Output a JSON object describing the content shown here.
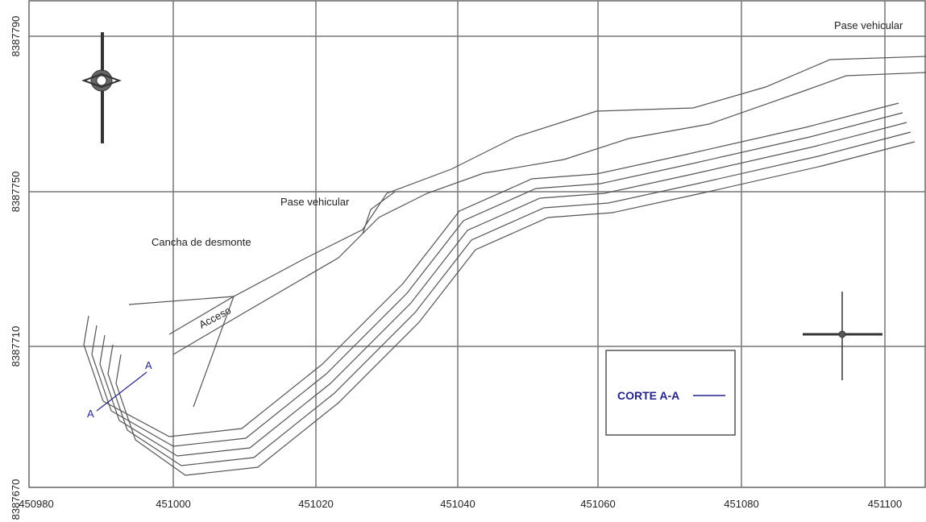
{
  "x_ticks": [
    "450980",
    "451000",
    "451020",
    "451040",
    "451060",
    "451080",
    "451100"
  ],
  "y_ticks": [
    "8387790",
    "8387750",
    "8387710",
    "8387670"
  ],
  "labels": {
    "pase_top": "Pase vehicular",
    "pase_mid": "Pase vehicular",
    "cancha": "Cancha de desmonte",
    "acceso": "Acceso",
    "section_a1": "A",
    "section_a2": "A"
  },
  "legend_box": {
    "text": "CORTE A-A"
  }
}
